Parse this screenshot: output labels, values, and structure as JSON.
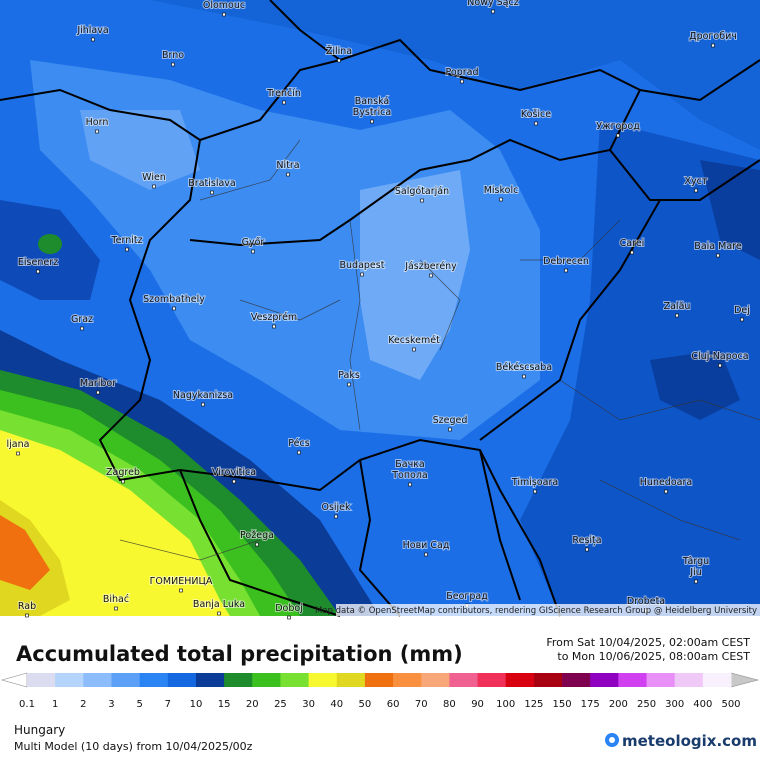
{
  "map": {
    "cities": [
      "Olomouc",
      "Nowy Sącz",
      "Jihlava",
      "Brno",
      "Žilina",
      "Poprad",
      "Дрогобич",
      "Horn",
      "Trenčín",
      [
        "Banská",
        "Bystrica"
      ],
      "Košice",
      "Ужгород",
      "Wien",
      "Bratislava",
      "Nitra",
      "Salgótarján",
      "Miskolc",
      "Хуст",
      "Ternitz",
      "Győr",
      "Carei",
      "Baia Mare",
      "Eisenerz",
      "Budapest",
      "Jászberény",
      "Debrecen",
      "Szombathely",
      "Zalău",
      "Graz",
      "Veszprém",
      "Dej",
      "Kecskemét",
      "Cluj-Napoca",
      "Békéscsaba",
      "Paks",
      "Maribor",
      "Nagykanizsa",
      "Szeged",
      "Pécs",
      [
        "Бачка",
        "Топола"
      ],
      "Zagreb",
      "Virovitica",
      "Timișoara",
      "Hunedoara",
      "Osijek",
      "Požega",
      "Reșița",
      "Нови Сад",
      "ГОМИЕНИЦА",
      "Bihać",
      "Banja Luka",
      "Doboj",
      "Београд",
      [
        "Târgu",
        "Jiu"
      ],
      "Drobeta",
      "ljana",
      "Rab"
    ],
    "attribution": "Map data © OpenStreetMap contributors, rendering GIScience Research Group @ Heidelberg University"
  },
  "header": {
    "title": "Accumulated total precipitation (mm)",
    "from": "From Sat 10/04/2025, 02:00am CEST",
    "to": "to Mon 10/06/2025, 08:00am CEST"
  },
  "legend": {
    "ticks": [
      0.1,
      1,
      2,
      3,
      5,
      7,
      10,
      15,
      20,
      25,
      30,
      40,
      50,
      60,
      70,
      80,
      90,
      100,
      125,
      150,
      175,
      200,
      250,
      300,
      400,
      500
    ],
    "colors": [
      "#dcdcf0",
      "#b4d4fc",
      "#8cbcfc",
      "#5ca0f8",
      "#2a84f4",
      "#1468e0",
      "#0a3c98",
      "#1e8c2c",
      "#3cc020",
      "#78e030",
      "#f8f830",
      "#e0d820",
      "#f07010",
      "#f89040",
      "#f8a878",
      "#f06090",
      "#f03058",
      "#d80010",
      "#a80010",
      "#800050",
      "#9000c0",
      "#d040f0",
      "#e890f8",
      "#f0c8f8",
      "#f8f0fc"
    ]
  },
  "footer": {
    "region": "Hungary",
    "model": "Multi Model (10 days) from 10/04/2025/00z",
    "brand": "meteologix.com"
  }
}
